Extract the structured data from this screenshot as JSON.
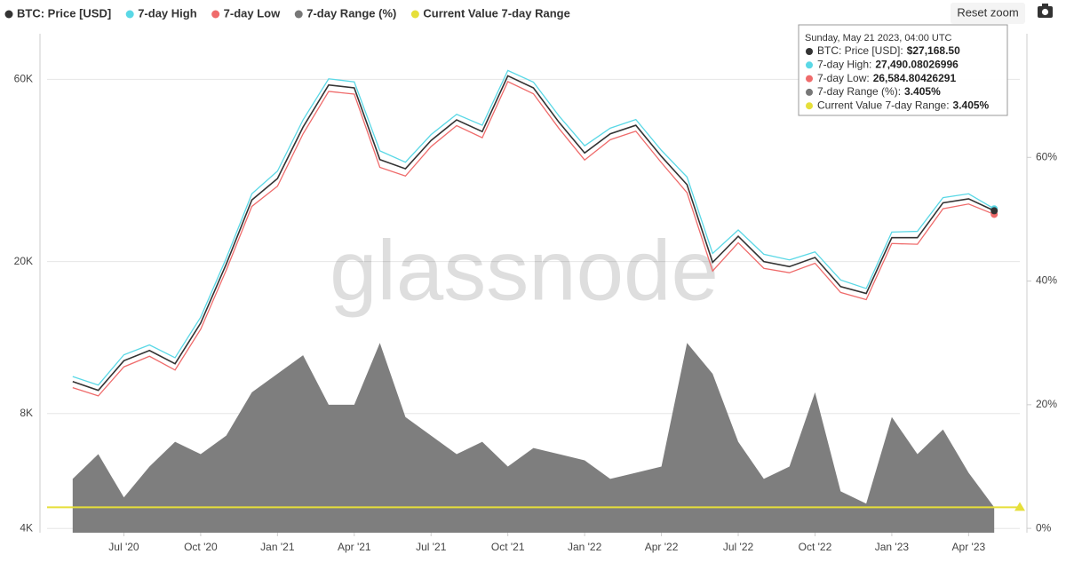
{
  "chart_data": {
    "type": "line",
    "log_y": true,
    "grid": true,
    "legend": "top-left",
    "watermark": "glassnode",
    "reset_button": "Reset zoom",
    "x": [
      "2020-05",
      "2020-06",
      "2020-07",
      "2020-08",
      "2020-09",
      "2020-10",
      "2020-11",
      "2020-12",
      "2021-01",
      "2021-02",
      "2021-03",
      "2021-04",
      "2021-05",
      "2021-06",
      "2021-07",
      "2021-08",
      "2021-09",
      "2021-10",
      "2021-11",
      "2021-12",
      "2022-01",
      "2022-02",
      "2022-03",
      "2022-04",
      "2022-05",
      "2022-06",
      "2022-07",
      "2022-08",
      "2022-09",
      "2022-10",
      "2022-11",
      "2022-12",
      "2023-01",
      "2023-02",
      "2023-03",
      "2023-04",
      "2023-05"
    ],
    "xlim": [
      "2020-04",
      "2023-06"
    ],
    "xticks": [
      {
        "value": "2020-07",
        "label": "Jul '20"
      },
      {
        "value": "2020-10",
        "label": "Oct '20"
      },
      {
        "value": "2021-01",
        "label": "Jan '21"
      },
      {
        "value": "2021-04",
        "label": "Apr '21"
      },
      {
        "value": "2021-07",
        "label": "Jul '21"
      },
      {
        "value": "2021-10",
        "label": "Oct '21"
      },
      {
        "value": "2022-01",
        "label": "Jan '22"
      },
      {
        "value": "2022-04",
        "label": "Apr '22"
      },
      {
        "value": "2022-07",
        "label": "Jul '22"
      },
      {
        "value": "2022-10",
        "label": "Oct '22"
      },
      {
        "value": "2023-01",
        "label": "Jan '23"
      },
      {
        "value": "2023-04",
        "label": "Apr '23"
      }
    ],
    "ylim": [
      3900,
      79000
    ],
    "yticks": [
      {
        "value": 4000,
        "label": "4K"
      },
      {
        "value": 8000,
        "label": "8K"
      },
      {
        "value": 20000,
        "label": "20K"
      },
      {
        "value": 60000,
        "label": "60K"
      }
    ],
    "y2lim": [
      -0.7,
      80
    ],
    "y2ticks": [
      {
        "value": 0,
        "label": "0%"
      },
      {
        "value": 20,
        "label": "20%"
      },
      {
        "value": 40,
        "label": "40%"
      },
      {
        "value": 60,
        "label": "60%"
      }
    ],
    "series": [
      {
        "name": "BTC: Price [USD]",
        "color": "#333333",
        "values": [
          9700,
          9200,
          11000,
          11700,
          10800,
          13800,
          19700,
          29000,
          33000,
          45000,
          58000,
          57000,
          37000,
          35000,
          41500,
          47000,
          43800,
          61300,
          57000,
          46300,
          38500,
          43200,
          45500,
          37700,
          31800,
          19900,
          23300,
          20000,
          19400,
          20500,
          17200,
          16500,
          23100,
          23100,
          28500,
          29200,
          27168.5
        ]
      },
      {
        "name": "7-day High",
        "color": "#5ad8e6",
        "values": [
          10000,
          9500,
          11400,
          12100,
          11200,
          14300,
          20400,
          30100,
          34500,
          47000,
          60200,
          59100,
          39000,
          36400,
          43000,
          48600,
          45500,
          63300,
          59000,
          48100,
          40200,
          44700,
          47100,
          39100,
          33300,
          21000,
          24200,
          20900,
          20200,
          21200,
          17900,
          17000,
          23900,
          24000,
          29400,
          30100,
          27490.08026996
        ]
      },
      {
        "name": "7-day Low",
        "color": "#ef6b6b",
        "values": [
          9350,
          8900,
          10600,
          11300,
          10400,
          13300,
          19000,
          27900,
          31500,
          43200,
          55800,
          54900,
          35300,
          33500,
          40000,
          45400,
          42200,
          59200,
          55000,
          44600,
          36900,
          41700,
          43900,
          36300,
          30300,
          18900,
          22400,
          19200,
          18700,
          19800,
          16600,
          15900,
          22300,
          22200,
          27500,
          28300,
          26584.80426291
        ]
      },
      {
        "name": "7-day Range (%)",
        "color": "#777777",
        "axis": "y2",
        "values": [
          8,
          12,
          5,
          10,
          14,
          12,
          15,
          22,
          25,
          28,
          20,
          20,
          30,
          18,
          15,
          12,
          14,
          10,
          13,
          12,
          11,
          8,
          9,
          10,
          30,
          25,
          14,
          8,
          10,
          22,
          6,
          4,
          18,
          12,
          16,
          9,
          3.405
        ]
      },
      {
        "name": "Current Value 7-day Range",
        "color": "#e6df3a",
        "axis": "y2",
        "value": 3.405
      }
    ],
    "tooltip": {
      "date": "Sunday, May 21 2023, 04:00 UTC",
      "rows": [
        {
          "label": "BTC: Price [USD]:",
          "value": "$27,168.50"
        },
        {
          "label": "7-day High:",
          "value": "27,490.08026996"
        },
        {
          "label": "7-day Low:",
          "value": "26,584.80426291"
        },
        {
          "label": "7-day Range (%):",
          "value": "3.405%"
        },
        {
          "label": "Current Value 7-day Range:",
          "value": "3.405%"
        }
      ]
    }
  }
}
